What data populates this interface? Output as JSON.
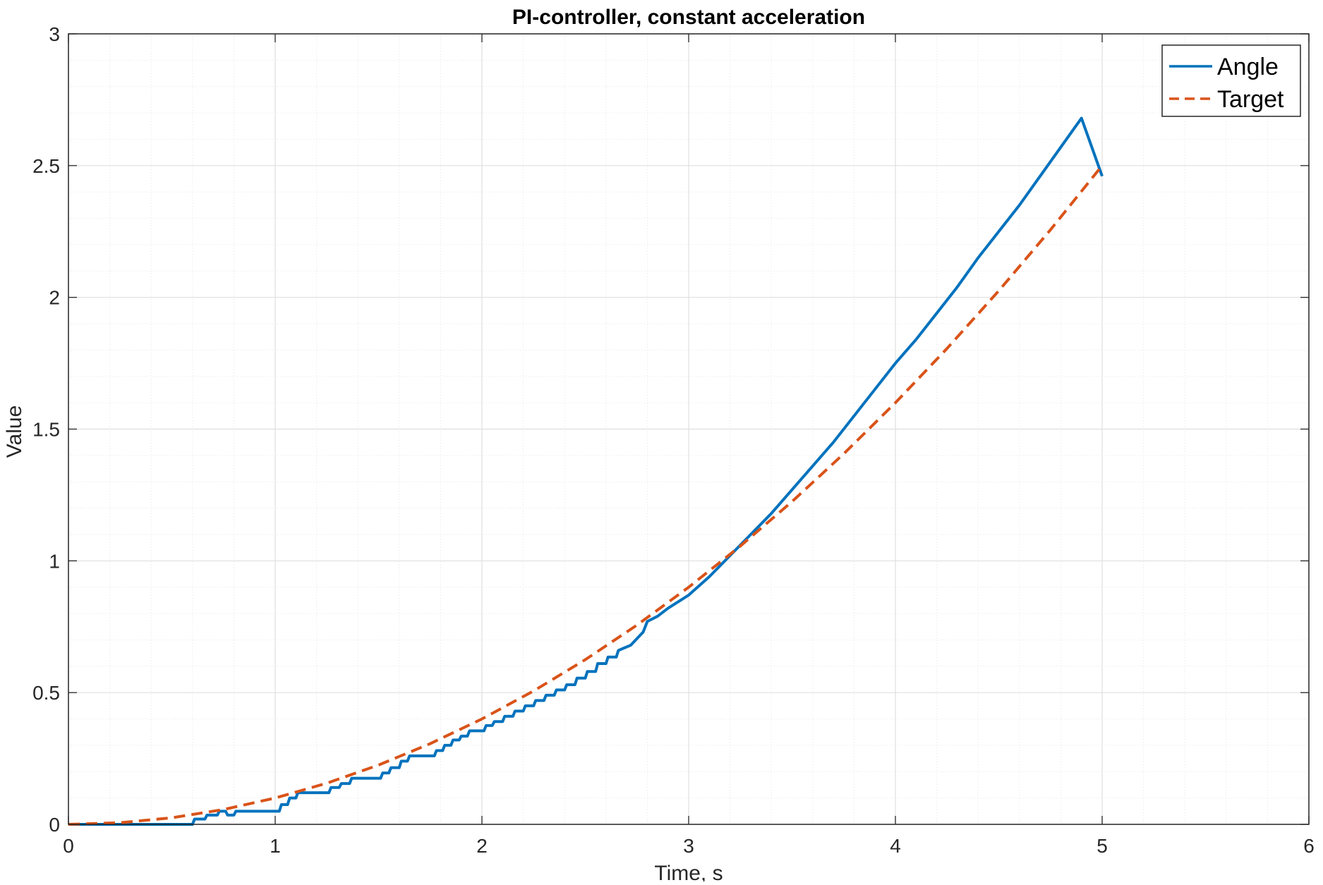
{
  "chart_data": {
    "type": "line",
    "title": "PI-controller, constant acceleration",
    "xlabel": "Time, s",
    "ylabel": "Value",
    "xlim": [
      0,
      6
    ],
    "ylim": [
      0,
      3
    ],
    "xticks": [
      "0",
      "1",
      "2",
      "3",
      "4",
      "5",
      "6"
    ],
    "yticks": [
      "0",
      "0.5",
      "1",
      "1.5",
      "2",
      "2.5",
      "3"
    ],
    "grid": true,
    "minor_grid": true,
    "legend_position": "top-right",
    "series": [
      {
        "name": "Angle",
        "color": "#0072BD",
        "style": "solid",
        "x": [
          0,
          0.6,
          0.61,
          0.66,
          0.67,
          0.72,
          0.73,
          0.76,
          0.77,
          0.8,
          0.81,
          1.02,
          1.03,
          1.06,
          1.07,
          1.1,
          1.11,
          1.26,
          1.27,
          1.31,
          1.32,
          1.36,
          1.37,
          1.51,
          1.52,
          1.55,
          1.56,
          1.6,
          1.61,
          1.64,
          1.65,
          1.77,
          1.78,
          1.81,
          1.82,
          1.85,
          1.86,
          1.89,
          1.9,
          1.93,
          1.94,
          2.01,
          2.02,
          2.05,
          2.06,
          2.1,
          2.11,
          2.15,
          2.16,
          2.2,
          2.21,
          2.25,
          2.26,
          2.3,
          2.31,
          2.35,
          2.36,
          2.4,
          2.41,
          2.45,
          2.46,
          2.5,
          2.51,
          2.55,
          2.56,
          2.6,
          2.61,
          2.65,
          2.66,
          2.72,
          2.78,
          2.8,
          2.85,
          2.9,
          3.0,
          3.1,
          3.2,
          3.3,
          3.4,
          3.5,
          3.6,
          3.7,
          3.8,
          3.9,
          4.0,
          4.1,
          4.2,
          4.3,
          4.4,
          4.5,
          4.6,
          4.7,
          4.8,
          4.9,
          5.0
        ],
        "y": [
          0,
          0,
          0.02,
          0.02,
          0.035,
          0.035,
          0.05,
          0.05,
          0.035,
          0.035,
          0.05,
          0.05,
          0.075,
          0.075,
          0.1,
          0.1,
          0.12,
          0.12,
          0.14,
          0.14,
          0.155,
          0.155,
          0.175,
          0.175,
          0.195,
          0.195,
          0.215,
          0.215,
          0.24,
          0.24,
          0.26,
          0.26,
          0.28,
          0.28,
          0.3,
          0.3,
          0.32,
          0.32,
          0.335,
          0.335,
          0.355,
          0.355,
          0.375,
          0.375,
          0.39,
          0.39,
          0.41,
          0.41,
          0.43,
          0.43,
          0.45,
          0.45,
          0.47,
          0.47,
          0.49,
          0.49,
          0.51,
          0.51,
          0.53,
          0.53,
          0.555,
          0.555,
          0.58,
          0.58,
          0.61,
          0.61,
          0.635,
          0.635,
          0.66,
          0.68,
          0.73,
          0.77,
          0.79,
          0.82,
          0.87,
          0.94,
          1.02,
          1.1,
          1.18,
          1.27,
          1.36,
          1.45,
          1.55,
          1.65,
          1.75,
          1.84,
          1.94,
          2.04,
          2.15,
          2.25,
          2.35,
          2.46,
          2.57,
          2.68,
          2.46
        ]
      },
      {
        "name": "Target",
        "color": "#D95319",
        "style": "dashed",
        "x": [
          0,
          0.25,
          0.5,
          0.75,
          1.0,
          1.25,
          1.5,
          1.75,
          2.0,
          2.25,
          2.5,
          2.75,
          3.0,
          3.25,
          3.5,
          3.75,
          4.0,
          4.25,
          4.5,
          4.75,
          5.0
        ],
        "y": [
          0,
          0.00625,
          0.025,
          0.05625,
          0.1,
          0.15625,
          0.225,
          0.30625,
          0.4,
          0.50625,
          0.625,
          0.75625,
          0.9,
          1.05625,
          1.225,
          1.40625,
          1.6,
          1.80625,
          2.025,
          2.25625,
          2.5
        ]
      }
    ]
  }
}
